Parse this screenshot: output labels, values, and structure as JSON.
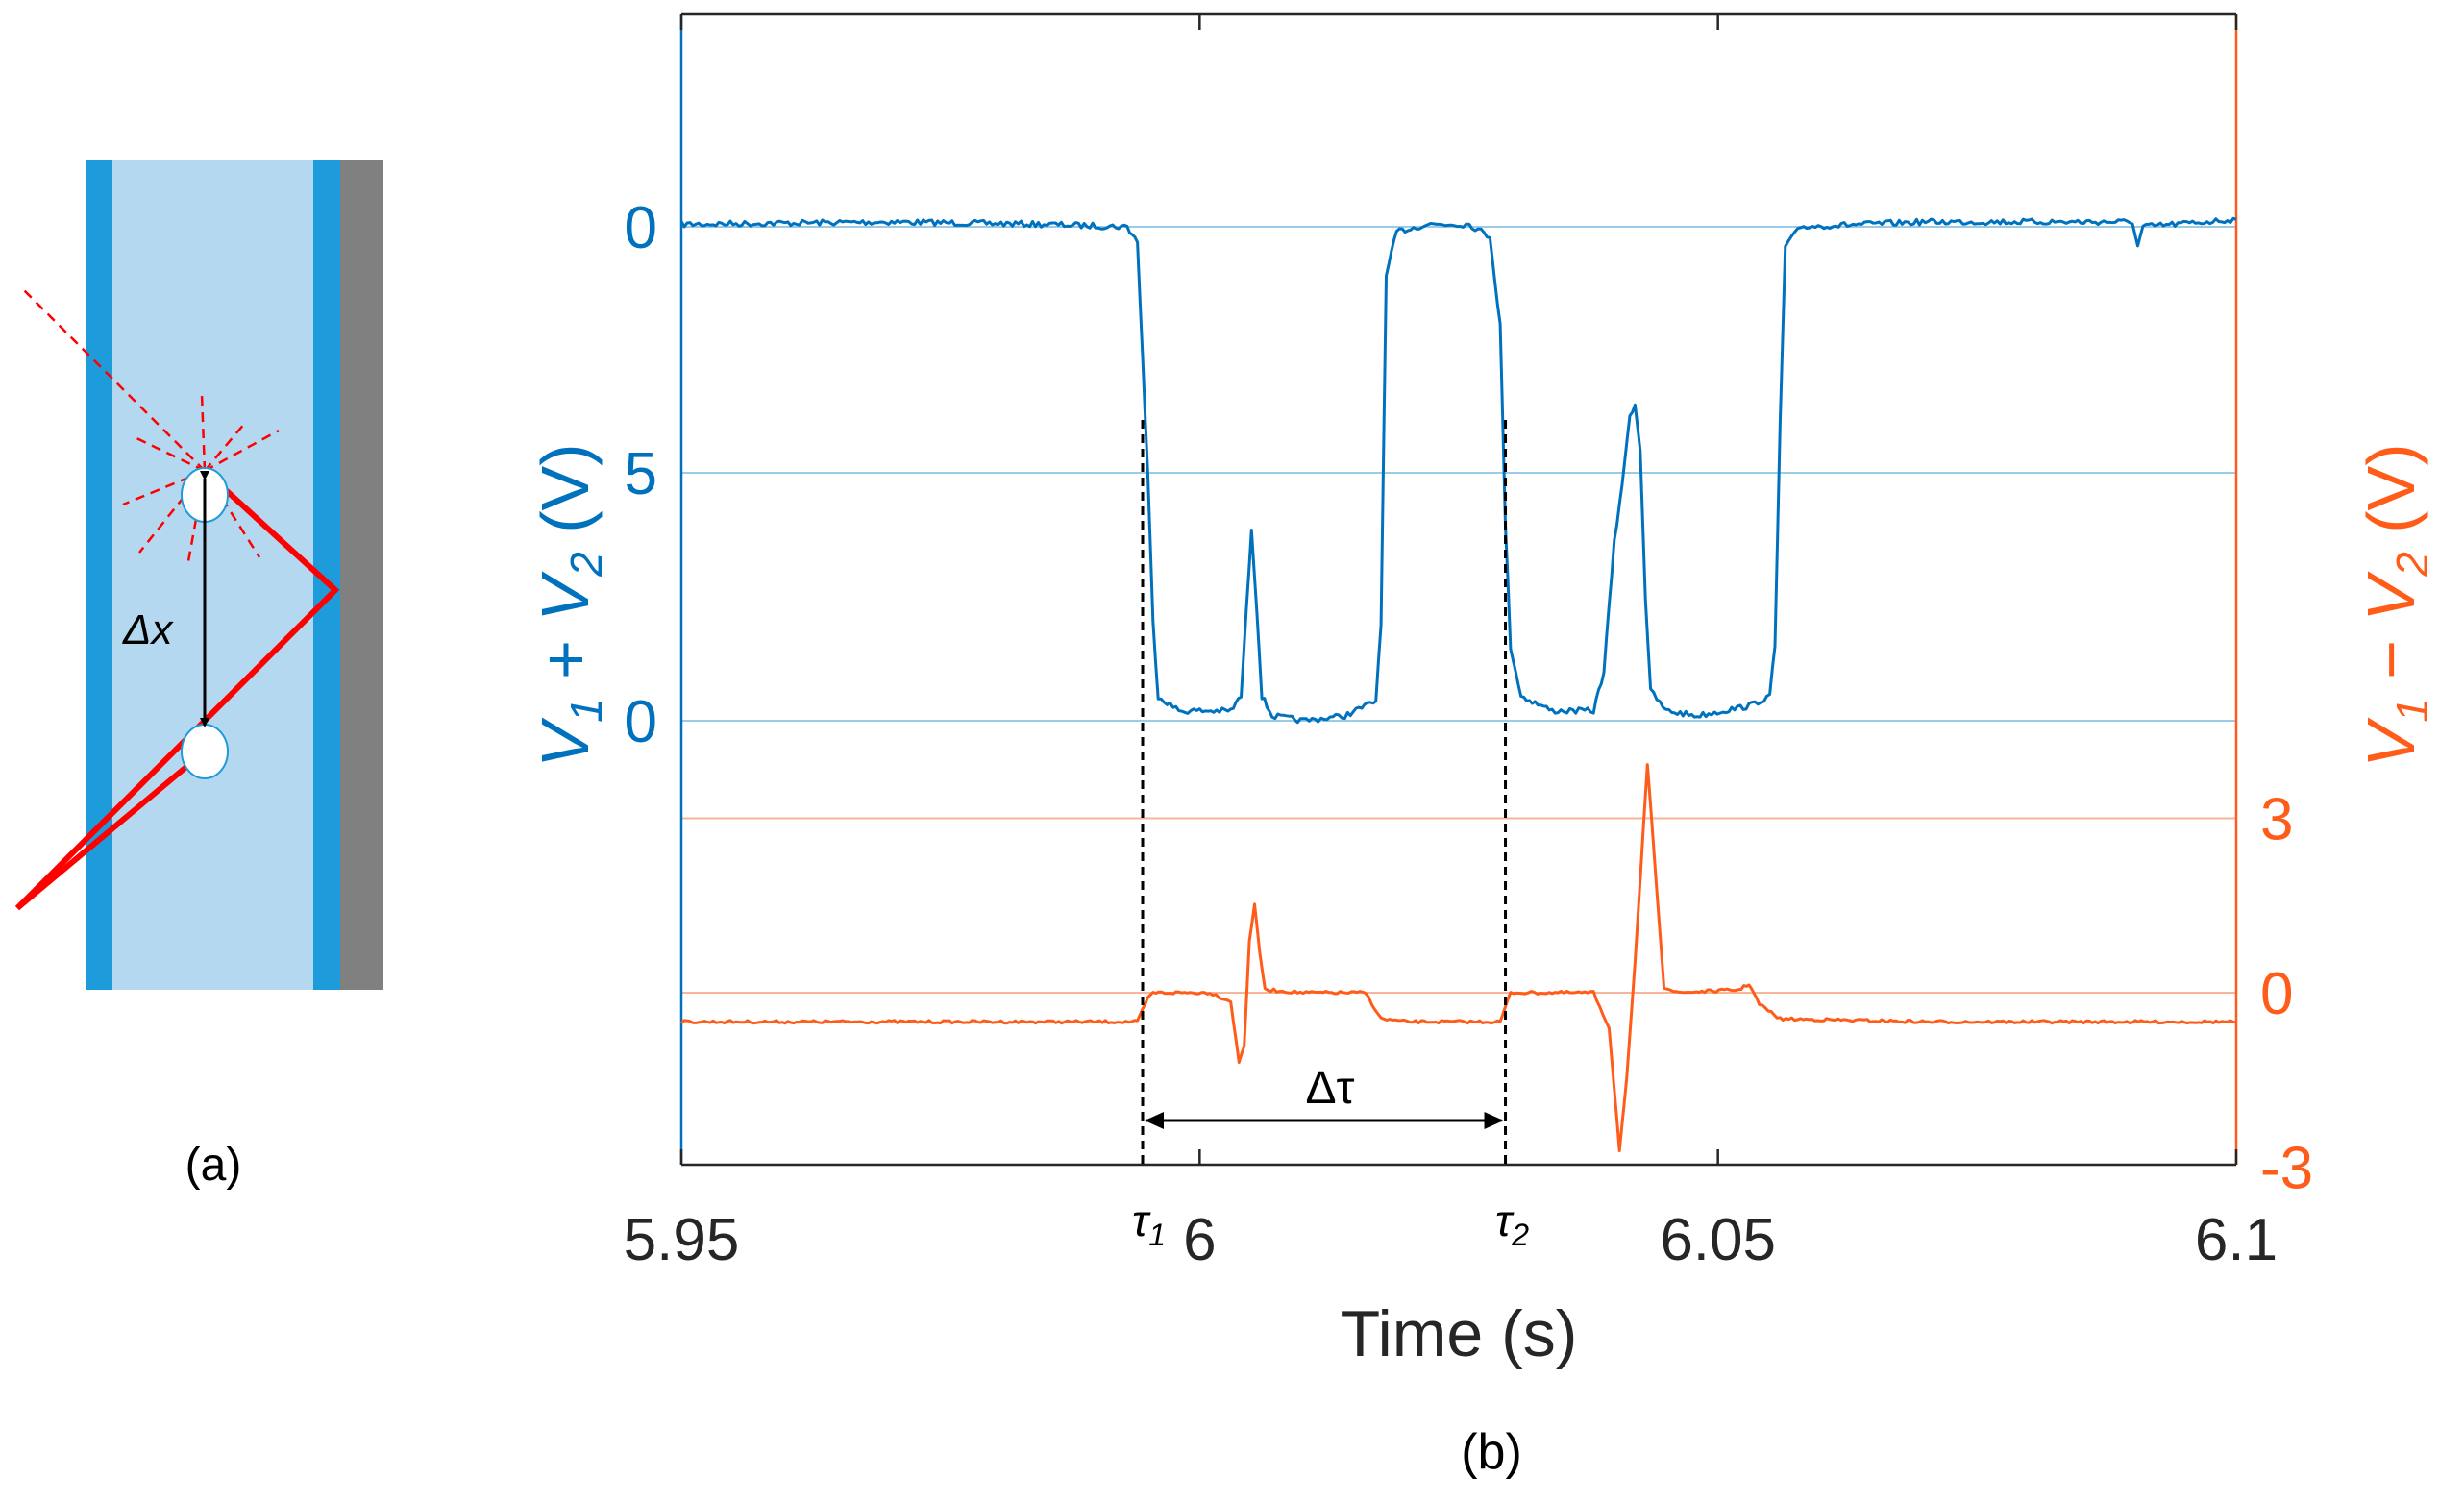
{
  "colors": {
    "left_axis": "#0072BD",
    "right_axis": "#FF5C1A",
    "grid_left": "#9CCBEA",
    "grid_right": "#F7B59A",
    "pipe_fill": "#B4D8EF",
    "pipe_wall": "#1E9BDB",
    "outer_wall": "#808080",
    "beam": "#FF0000",
    "annotation": "#000000"
  },
  "panel_a": {
    "label": "(a)",
    "delta_x_label": "Δx",
    "icons": [
      "bubble-icon",
      "bubble-icon"
    ]
  },
  "panel_b": {
    "label": "(b)",
    "tau1_label": "τ1",
    "tau2_label": "τ2",
    "delta_tau_label": "Δτ"
  },
  "chart_data": {
    "type": "line",
    "title": "",
    "xlabel": "Time (s)",
    "xlim": [
      5.95,
      6.1
    ],
    "x_ticks": [
      5.95,
      6,
      6.05,
      6.1
    ],
    "x_tick_labels": [
      "5.95",
      "6",
      "6.05",
      "6.1"
    ],
    "grid": "horizontal",
    "left_axis": {
      "ylabel": "V1 + V2 (V)",
      "tick_labels": [
        "0",
        "5",
        "0"
      ],
      "grid_lines": 4
    },
    "right_axis": {
      "ylabel": "V1 − V2 (V)",
      "ylim": [
        -3,
        4.9
      ],
      "ticks": [
        -3,
        0,
        3
      ],
      "tick_labels": [
        "-3",
        "0",
        "3"
      ]
    },
    "markers": {
      "tau1": 5.9945,
      "tau2": 6.0295
    },
    "series": [
      {
        "axis": "left",
        "points": [
          [
            5.95,
            10.05
          ],
          [
            5.97,
            10.1
          ],
          [
            5.985,
            10.05
          ],
          [
            5.993,
            10.0
          ],
          [
            5.994,
            9.7
          ],
          [
            5.995,
            5.0
          ],
          [
            5.9955,
            2.0
          ],
          [
            5.996,
            0.5
          ],
          [
            5.998,
            0.2
          ],
          [
            6.0,
            0.2
          ],
          [
            6.003,
            0.2
          ],
          [
            6.004,
            0.5
          ],
          [
            6.0045,
            2.2
          ],
          [
            6.005,
            3.9
          ],
          [
            6.0055,
            2.3
          ],
          [
            6.006,
            0.5
          ],
          [
            6.007,
            0.1
          ],
          [
            6.01,
            0.0
          ],
          [
            6.014,
            0.1
          ],
          [
            6.017,
            0.4
          ],
          [
            6.0175,
            2.0
          ],
          [
            6.018,
            9.0
          ],
          [
            6.019,
            9.9
          ],
          [
            6.022,
            10.05
          ],
          [
            6.026,
            10.05
          ],
          [
            6.028,
            9.8
          ],
          [
            6.029,
            8.0
          ],
          [
            6.0295,
            4.0
          ],
          [
            6.03,
            1.5
          ],
          [
            6.031,
            0.5
          ],
          [
            6.034,
            0.2
          ],
          [
            6.038,
            0.2
          ],
          [
            6.039,
            1.0
          ],
          [
            6.04,
            3.6
          ],
          [
            6.041,
            5.2
          ],
          [
            6.0415,
            6.2
          ],
          [
            6.042,
            6.4
          ],
          [
            6.0425,
            5.5
          ],
          [
            6.043,
            2.5
          ],
          [
            6.0435,
            0.6
          ],
          [
            6.045,
            0.2
          ],
          [
            6.048,
            0.1
          ],
          [
            6.053,
            0.3
          ],
          [
            6.055,
            0.5
          ],
          [
            6.0555,
            1.5
          ],
          [
            6.056,
            6.0
          ],
          [
            6.0565,
            9.6
          ],
          [
            6.058,
            10.0
          ],
          [
            6.07,
            10.1
          ],
          [
            6.09,
            10.1
          ],
          [
            6.0905,
            9.6
          ],
          [
            6.091,
            10.0
          ],
          [
            6.1,
            10.15
          ]
        ]
      },
      {
        "axis": "right",
        "name": "",
        "points": [
          [
            5.95,
            -0.5
          ],
          [
            5.97,
            -0.5
          ],
          [
            5.985,
            -0.5
          ],
          [
            5.994,
            -0.5
          ],
          [
            5.995,
            -0.1
          ],
          [
            5.9955,
            0.0
          ],
          [
            5.998,
            0.0
          ],
          [
            6.001,
            0.0
          ],
          [
            6.003,
            -0.15
          ],
          [
            6.0038,
            -1.2
          ],
          [
            6.0043,
            -0.9
          ],
          [
            6.0048,
            0.9
          ],
          [
            6.0053,
            1.5
          ],
          [
            6.0058,
            0.7
          ],
          [
            6.0063,
            0.05
          ],
          [
            6.01,
            0.0
          ],
          [
            6.016,
            0.0
          ],
          [
            6.0175,
            -0.45
          ],
          [
            6.02,
            -0.5
          ],
          [
            6.025,
            -0.5
          ],
          [
            6.029,
            -0.5
          ],
          [
            6.0297,
            -0.15
          ],
          [
            6.03,
            0.0
          ],
          [
            6.034,
            0.0
          ],
          [
            6.038,
            0.0
          ],
          [
            6.0395,
            -0.6
          ],
          [
            6.0405,
            -2.7
          ],
          [
            6.0412,
            -1.5
          ],
          [
            6.042,
            0.5
          ],
          [
            6.0428,
            2.8
          ],
          [
            6.0432,
            3.9
          ],
          [
            6.0438,
            2.5
          ],
          [
            6.0448,
            0.1
          ],
          [
            6.046,
            0.0
          ],
          [
            6.052,
            0.05
          ],
          [
            6.053,
            0.15
          ],
          [
            6.054,
            -0.2
          ],
          [
            6.056,
            -0.45
          ],
          [
            6.07,
            -0.5
          ],
          [
            6.1,
            -0.5
          ]
        ]
      }
    ]
  }
}
